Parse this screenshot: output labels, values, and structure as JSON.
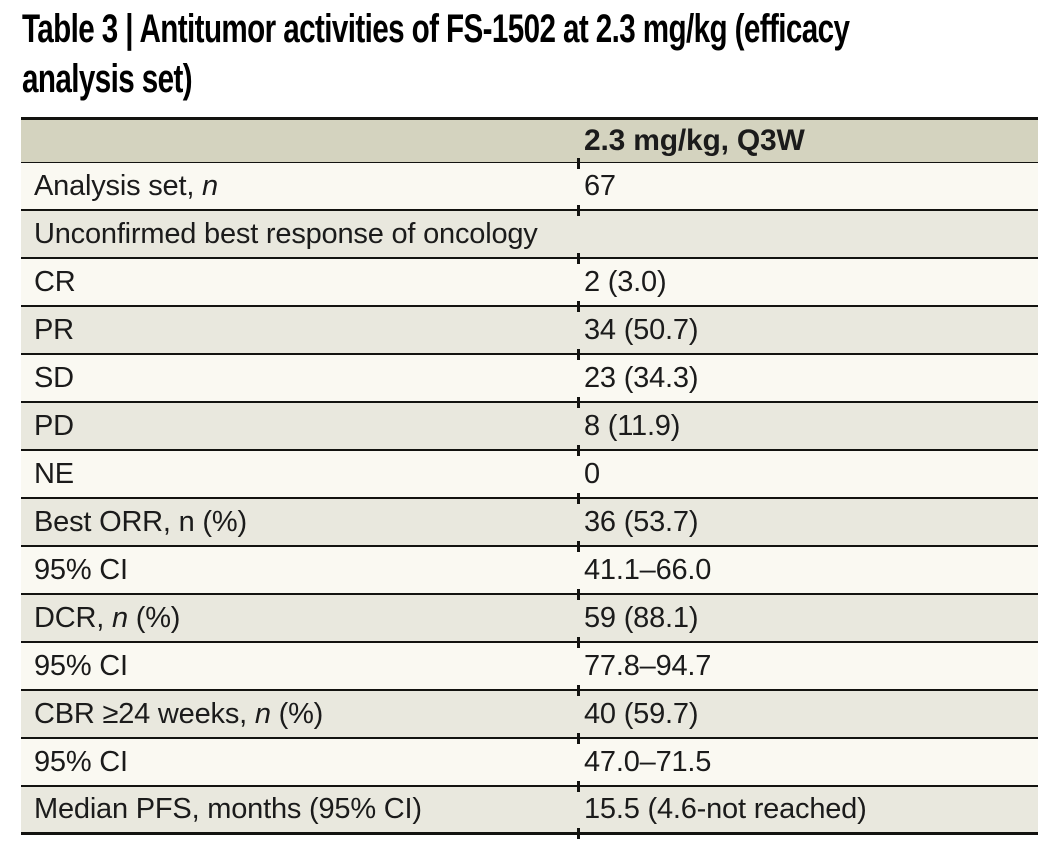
{
  "title": {
    "line1": "Table 3 | Antitumor activities of FS-1502 at 2.3 mg/kg (efficacy",
    "line2": "analysis set)"
  },
  "colors": {
    "header_bg": "#d4d3bf",
    "row_beige": "#e9e8de",
    "row_light": "#faf9f2",
    "rule": "#131310",
    "text": "#1b1b1b"
  },
  "table": {
    "column_header": "2.3 mg/kg, Q3W",
    "rows": [
      {
        "kind": "data",
        "shade": "light",
        "label_pre": "Analysis set, ",
        "label_italic": "n",
        "label_post": "",
        "value": "67"
      },
      {
        "kind": "span",
        "shade": "beige",
        "label_pre": "Unconfirmed best response of oncology",
        "label_italic": "",
        "label_post": "",
        "value": ""
      },
      {
        "kind": "data",
        "shade": "light",
        "label_pre": "CR",
        "label_italic": "",
        "label_post": "",
        "value": "2 (3.0)"
      },
      {
        "kind": "data",
        "shade": "beige",
        "label_pre": "PR",
        "label_italic": "",
        "label_post": "",
        "value": "34 (50.7)"
      },
      {
        "kind": "data",
        "shade": "light",
        "label_pre": "SD",
        "label_italic": "",
        "label_post": "",
        "value": "23 (34.3)"
      },
      {
        "kind": "data",
        "shade": "beige",
        "label_pre": "PD",
        "label_italic": "",
        "label_post": "",
        "value": "8 (11.9)"
      },
      {
        "kind": "data",
        "shade": "light",
        "label_pre": "NE",
        "label_italic": "",
        "label_post": "",
        "value": "0"
      },
      {
        "kind": "data",
        "shade": "beige",
        "label_pre": "Best ORR, n (%)",
        "label_italic": "",
        "label_post": "",
        "value": "36 (53.7)"
      },
      {
        "kind": "data",
        "shade": "light",
        "label_pre": "95% CI",
        "label_italic": "",
        "label_post": "",
        "value": "41.1–66.0"
      },
      {
        "kind": "data",
        "shade": "beige",
        "label_pre": "DCR, ",
        "label_italic": "n",
        "label_post": " (%)",
        "value": "59 (88.1)"
      },
      {
        "kind": "data",
        "shade": "light",
        "label_pre": "95% CI",
        "label_italic": "",
        "label_post": "",
        "value": "77.8–94.7"
      },
      {
        "kind": "data",
        "shade": "beige",
        "label_pre": "CBR ≥24 weeks, ",
        "label_italic": "n",
        "label_post": " (%)",
        "value": "40 (59.7)"
      },
      {
        "kind": "data",
        "shade": "light",
        "label_pre": "95% CI",
        "label_italic": "",
        "label_post": "",
        "value": "47.0–71.5"
      },
      {
        "kind": "data",
        "shade": "beige",
        "label_pre": "Median PFS, months (95% CI)",
        "label_italic": "",
        "label_post": "",
        "value": "15.5 (4.6-not reached)"
      }
    ]
  }
}
